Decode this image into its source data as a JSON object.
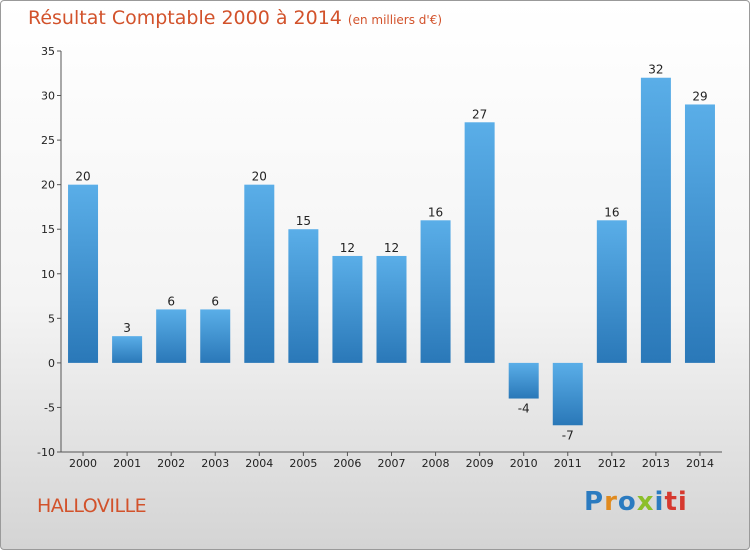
{
  "header": {
    "title": "Résultat Comptable 2000 à 2014",
    "subtitle": "(en milliers d'€)"
  },
  "footer": {
    "commune": "HALLOVILLE",
    "logo_letters": [
      "P",
      "r",
      "o",
      "x",
      "i",
      "ti"
    ]
  },
  "colors": {
    "title": "#d2522b",
    "bar_top": "#5aaee8",
    "bar_bottom": "#2a78b8"
  },
  "chart_data": {
    "type": "bar",
    "title": "Résultat Comptable 2000 à 2014",
    "subtitle": "(en milliers d'€)",
    "xlabel": "",
    "ylabel": "",
    "categories": [
      "2000",
      "2001",
      "2002",
      "2003",
      "2004",
      "2005",
      "2006",
      "2007",
      "2008",
      "2009",
      "2010",
      "2011",
      "2012",
      "2013",
      "2014"
    ],
    "values": [
      20,
      3,
      6,
      6,
      20,
      15,
      12,
      12,
      16,
      27,
      -4,
      -7,
      16,
      32,
      29
    ],
    "ylim": [
      -10,
      35
    ],
    "yticks": [
      -10,
      -5,
      0,
      5,
      10,
      15,
      20,
      25,
      30,
      35
    ],
    "grid": false,
    "legend": "none"
  }
}
